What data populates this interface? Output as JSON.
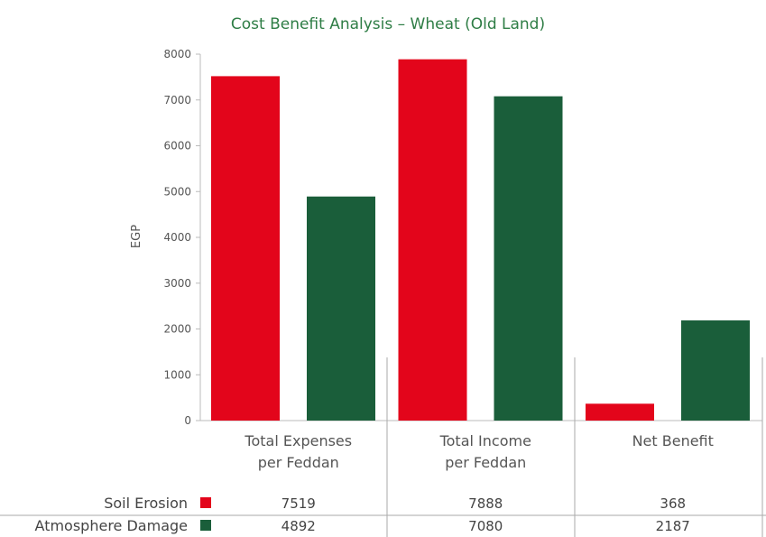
{
  "chart_data": {
    "type": "bar",
    "title": "Cost Benefit Analysis – Wheat (Old Land)",
    "ylabel": "EGP",
    "xlabel": "",
    "ylim": [
      0,
      8000
    ],
    "yticks": [
      0,
      1000,
      2000,
      3000,
      4000,
      5000,
      6000,
      7000,
      8000
    ],
    "categories": [
      [
        "Total Expenses",
        "per Feddan"
      ],
      [
        "Total Income",
        "per Feddan"
      ],
      [
        "Net Benefit"
      ]
    ],
    "series": [
      {
        "name": "Soil Erosion",
        "color": "#e3051b",
        "values": [
          7519,
          7888,
          368
        ],
        "labels": [
          "7519",
          "7888",
          "368"
        ]
      },
      {
        "name": "Atmosphere Damage",
        "color": "#1a5e3a",
        "values": [
          4892,
          7080,
          2187
        ],
        "labels": [
          "4892",
          "7080",
          "2187"
        ]
      }
    ],
    "grid": false,
    "legend": "data-table"
  }
}
